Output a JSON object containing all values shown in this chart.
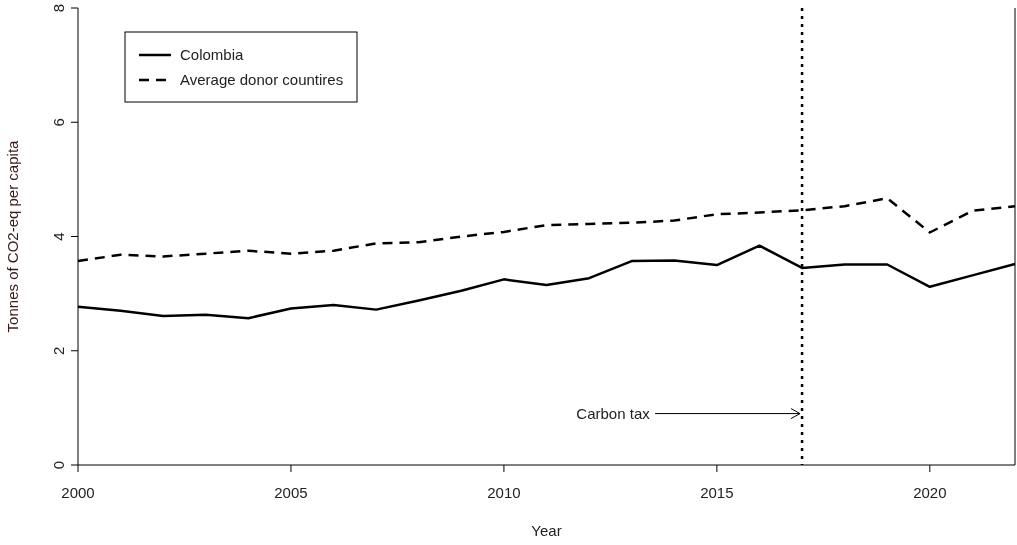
{
  "chart_data": {
    "type": "line",
    "xlabel": "Year",
    "ylabel": "Tonnes of CO2-eq per capita",
    "x": [
      2000,
      2001,
      2002,
      2003,
      2004,
      2005,
      2006,
      2007,
      2008,
      2009,
      2010,
      2011,
      2012,
      2013,
      2014,
      2015,
      2016,
      2017,
      2018,
      2019,
      2020,
      2021,
      2022
    ],
    "series": [
      {
        "name": "Colombia",
        "color": "#000000",
        "line_style": "solid",
        "values": [
          2.77,
          2.7,
          2.61,
          2.63,
          2.57,
          2.74,
          2.8,
          2.72,
          2.88,
          3.05,
          3.25,
          3.15,
          3.27,
          3.57,
          3.58,
          3.5,
          3.84,
          3.45,
          3.51,
          3.51,
          3.12,
          3.32,
          3.52
        ]
      },
      {
        "name": "Average donor countires",
        "color": "#000000",
        "line_style": "dashed",
        "values": [
          3.57,
          3.68,
          3.65,
          3.7,
          3.75,
          3.7,
          3.75,
          3.88,
          3.9,
          4.0,
          4.08,
          4.2,
          4.22,
          4.24,
          4.28,
          4.39,
          4.42,
          4.46,
          4.53,
          4.67,
          4.07,
          4.45,
          4.53
        ]
      }
    ],
    "xlim": [
      2000,
      2022
    ],
    "xticks": [
      2000,
      2005,
      2010,
      2015,
      2020
    ],
    "ylim": [
      0,
      8
    ],
    "yticks": [
      0,
      2,
      4,
      6,
      8
    ],
    "ref_lines": [
      {
        "axis": "x",
        "value": 2017,
        "line_style": "dotted",
        "color": "#000000"
      }
    ],
    "annotations": [
      {
        "text": "Carbon tax",
        "x": 2017,
        "y": 0.9
      }
    ],
    "legend": "top left",
    "grid": false
  }
}
